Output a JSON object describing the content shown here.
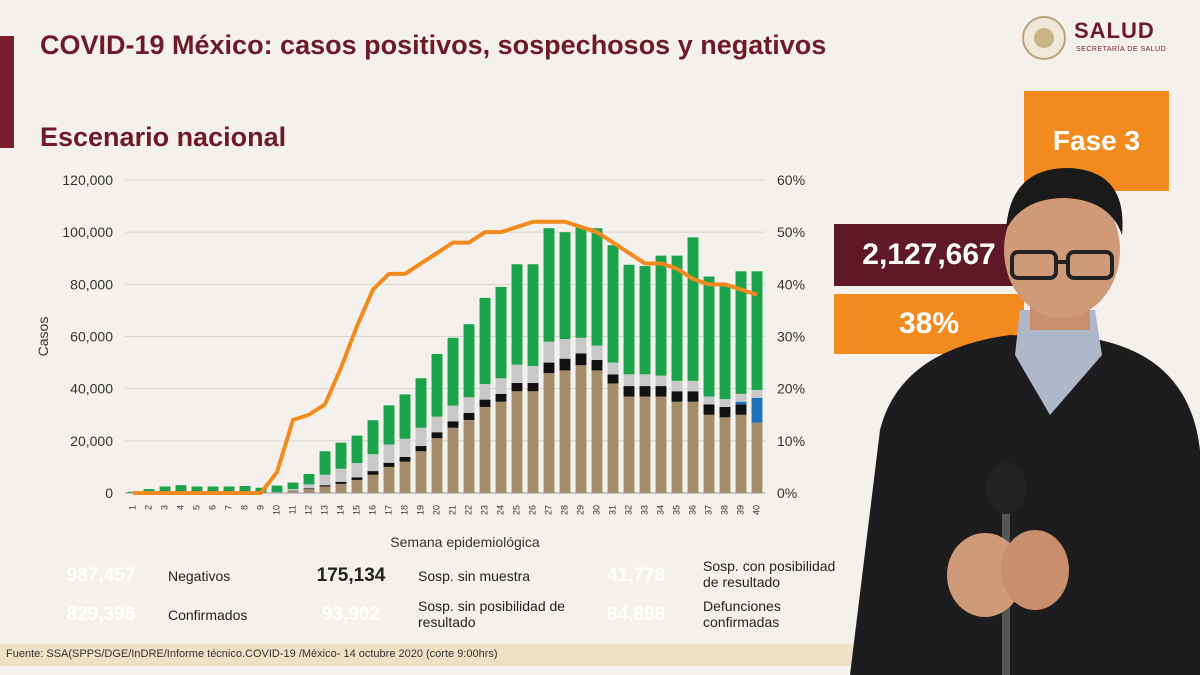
{
  "slide": {
    "title": "COVID-19 México: casos positivos, sospechosos y negativos",
    "subtitle": "Escenario nacional",
    "logo_name": "SALUD",
    "logo_sub": "SECRETARÍA DE SALUD",
    "phase": "Fase 3",
    "total": "2,127,667",
    "positivity": "38%",
    "source": "Fuente: SSA(SPPS/DGE/InDRE/Informe técnico.COVID-19 /México- 14 octubre 2020 (corte 9:00hrs)"
  },
  "colors": {
    "negativos": "#1aa34a",
    "sin_muestra": "#c8c8c8",
    "con_posibilidad": "#1f6fbf",
    "confirmados": "#a58c68",
    "sin_posibilidad": "#111111",
    "defunciones": "#15245a",
    "line": "#f28a1e",
    "brand": "#6e1a2c"
  },
  "legend": [
    {
      "value": "987,457",
      "label": "Negativos",
      "color": "#1aa34a"
    },
    {
      "value": "175,134",
      "label": "Sosp. sin muestra",
      "color": "#c8c8c8"
    },
    {
      "value": "41,778",
      "label": "Sosp. con posibilidad de resultado",
      "color": "#1f6fbf"
    },
    {
      "value": "829,396",
      "label": "Confirmados",
      "color": "#a58c68"
    },
    {
      "value": "93,902",
      "label": "Sosp. sin posibilidad de resultado",
      "color": "#111111"
    },
    {
      "value": "84,898",
      "label": "Defunciones confirmadas",
      "color": "#15245a"
    }
  ],
  "chart_data": {
    "type": "bar",
    "stacked": true,
    "xlabel": "Semana epidemiológica",
    "ylabel": "Casos",
    "ylim": [
      0,
      120000
    ],
    "y2lim": [
      0,
      60
    ],
    "yticks": [
      "0",
      "20,000",
      "40,000",
      "60,000",
      "80,000",
      "100,000",
      "120,000"
    ],
    "y2ticks": [
      "0%",
      "10%",
      "20%",
      "30%",
      "40%",
      "50%",
      "60%"
    ],
    "categories": [
      "1",
      "2",
      "3",
      "4",
      "5",
      "6",
      "7",
      "8",
      "9",
      "10",
      "11",
      "12",
      "13",
      "14",
      "15",
      "16",
      "17",
      "18",
      "19",
      "20",
      "21",
      "22",
      "23",
      "24",
      "25",
      "26",
      "27",
      "28",
      "29",
      "30",
      "31",
      "32",
      "33",
      "34",
      "35",
      "36",
      "37",
      "38",
      "39",
      "40"
    ],
    "series": [
      {
        "name": "Confirmados",
        "values": [
          0,
          0,
          0,
          0,
          0,
          0,
          0,
          0,
          0,
          200,
          800,
          1500,
          2500,
          3500,
          5000,
          7000,
          10000,
          12000,
          16000,
          21000,
          25000,
          28000,
          33000,
          35000,
          39000,
          39000,
          46000,
          47000,
          49000,
          47000,
          42000,
          37000,
          37000,
          37000,
          35000,
          35000,
          30000,
          29000,
          30000,
          27000
        ]
      },
      {
        "name": "Sosp. sin posibilidad de resultado",
        "values": [
          0,
          0,
          0,
          0,
          0,
          0,
          0,
          0,
          0,
          50,
          100,
          300,
          500,
          800,
          1000,
          1400,
          1600,
          1800,
          2000,
          2300,
          2500,
          2700,
          2800,
          3000,
          3200,
          3200,
          4000,
          4500,
          4500,
          4000,
          3500,
          4000,
          4000,
          4000,
          4000,
          4000,
          4000,
          4000,
          4000,
          0
        ]
      },
      {
        "name": "Sosp. con posibilidad de resultado",
        "values": [
          0,
          0,
          0,
          0,
          0,
          0,
          0,
          0,
          0,
          0,
          0,
          0,
          0,
          0,
          0,
          0,
          0,
          0,
          0,
          0,
          0,
          0,
          0,
          0,
          0,
          0,
          0,
          0,
          0,
          0,
          0,
          0,
          0,
          0,
          0,
          0,
          0,
          0,
          1000,
          9500
        ]
      },
      {
        "name": "Sosp. sin muestra",
        "values": [
          0,
          0,
          0,
          0,
          0,
          0,
          0,
          0,
          0,
          100,
          600,
          1500,
          4000,
          5000,
          5500,
          6500,
          7000,
          7000,
          7000,
          6000,
          6000,
          6000,
          6000,
          6000,
          7000,
          6500,
          8000,
          7500,
          6000,
          5500,
          4500,
          4500,
          4500,
          4000,
          4000,
          4000,
          3000,
          3000,
          3000,
          3000
        ]
      },
      {
        "name": "Negativos",
        "values": [
          500,
          1500,
          2500,
          3000,
          2500,
          2500,
          2500,
          2700,
          2000,
          2500,
          2500,
          4000,
          9000,
          10000,
          10500,
          13000,
          15000,
          17000,
          19000,
          24000,
          26000,
          28000,
          33000,
          35000,
          38500,
          39000,
          43500,
          41000,
          42500,
          45000,
          45000,
          42000,
          41500,
          46000,
          48000,
          55000,
          46000,
          44000,
          47000,
          45500
        ]
      }
    ],
    "line_series": {
      "name": "Positividad",
      "axis": "right",
      "values": [
        0,
        0,
        0,
        0,
        0,
        0,
        0,
        0,
        0,
        4,
        14,
        15,
        17,
        24,
        32,
        39,
        42,
        42,
        44,
        46,
        48,
        48,
        50,
        50,
        51,
        52,
        52,
        52,
        51,
        50,
        48,
        46,
        44,
        44,
        43,
        41,
        40,
        40,
        39,
        38
      ]
    }
  }
}
